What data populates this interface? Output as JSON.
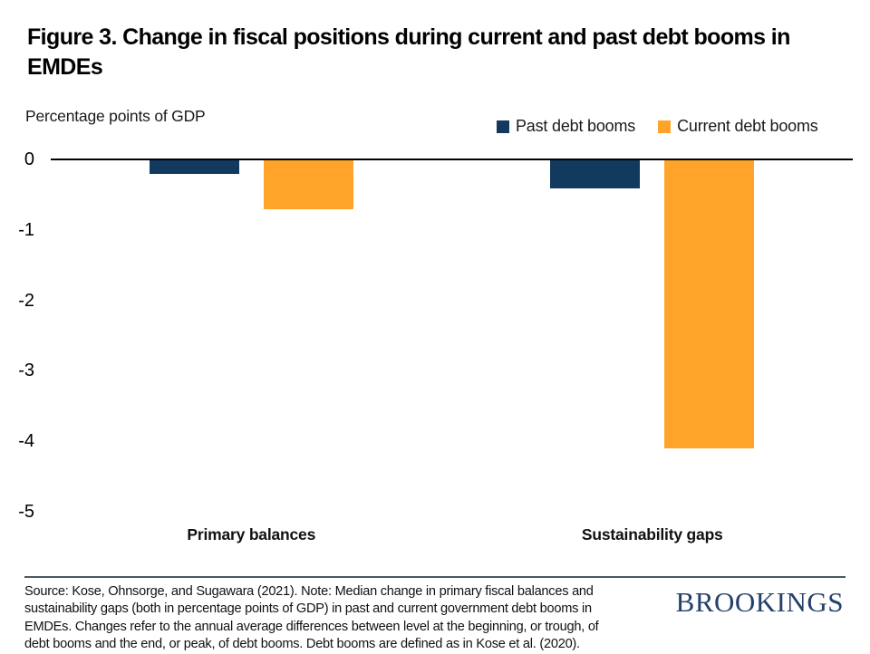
{
  "figure": {
    "title_lines": [
      "Figure 3. Change in fiscal positions during current and past debt booms in",
      "EMDEs"
    ],
    "unit_label": "Percentage points of GDP"
  },
  "chart_data": {
    "type": "bar",
    "title": "Figure 3. Change in fiscal positions during current and past debt booms in EMDEs",
    "ylabel": "Percentage points of GDP",
    "xlabel": "",
    "categories": [
      "Primary balances",
      "Sustainability gaps"
    ],
    "series": [
      {
        "name": "Past debt booms",
        "color": "#12395E",
        "values": [
          -0.2,
          -0.4
        ]
      },
      {
        "name": "Current debt booms",
        "color": "#FFA428",
        "values": [
          -0.7,
          -4.1
        ]
      }
    ],
    "ylim": [
      -5,
      0
    ],
    "yticks": [
      0,
      -1,
      -2,
      -3,
      -4,
      -5
    ],
    "grid": false,
    "legend_position": "top-right",
    "bar_orientation": "vertical-negative"
  },
  "footer": {
    "lines": [
      "Source: Kose, Ohnsorge, and Sugawara (2021). Note: Median change in primary fiscal balances and",
      "sustainability gaps (both in percentage points of GDP) in past and current government debt booms in",
      "EMDEs. Changes refer to the annual average differences between level at the beginning, or trough, of",
      "debt booms and the end, or peak, of debt booms. Debt booms are defined as in Kose et al. (2020)."
    ]
  },
  "logo": {
    "text": "BROOKINGS",
    "color": "#25416B"
  }
}
